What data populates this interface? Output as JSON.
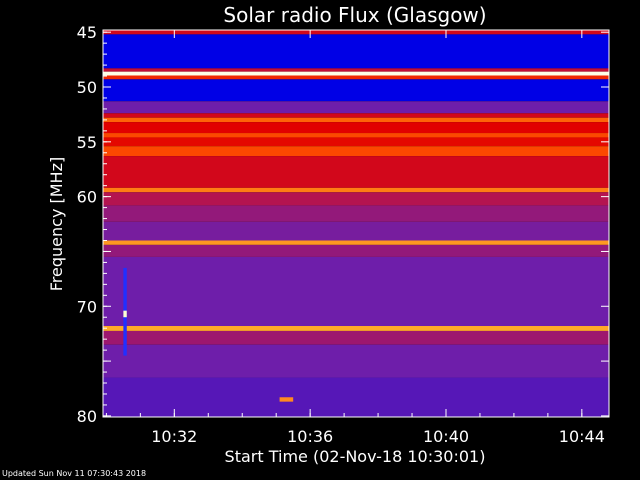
{
  "chart_data": {
    "type": "heatmap",
    "title": "Solar radio Flux (Glasgow)",
    "xlabel": "Start Time (02-Nov-18 10:30:01)",
    "ylabel": "Frequency [MHz]",
    "x_ticks": [
      "10:32",
      "10:36",
      "10:40",
      "10:44"
    ],
    "x_tick_minutes": [
      2,
      6,
      10,
      14
    ],
    "xlim_minutes": [
      -0.1,
      14.8
    ],
    "y_ticks": [
      45,
      50,
      55,
      60,
      65,
      70,
      75,
      80
    ],
    "y_tick_labels": [
      "45",
      "50",
      "55",
      "60",
      "",
      "70",
      "",
      "80"
    ],
    "ylim": [
      44.8,
      80.1
    ],
    "bands": [
      {
        "f0": 44.8,
        "f1": 45.2,
        "level": 0.55
      },
      {
        "f0": 45.2,
        "f1": 48.3,
        "level": 0.12
      },
      {
        "f0": 48.3,
        "f1": 48.6,
        "level": 0.5
      },
      {
        "f0": 48.6,
        "f1": 48.95,
        "level": 1.0
      },
      {
        "f0": 48.95,
        "f1": 49.3,
        "level": 0.7
      },
      {
        "f0": 49.3,
        "f1": 51.3,
        "level": 0.12
      },
      {
        "f0": 51.3,
        "f1": 52.4,
        "level": 0.3
      },
      {
        "f0": 52.4,
        "f1": 52.8,
        "level": 0.55
      },
      {
        "f0": 52.8,
        "f1": 53.2,
        "level": 0.82
      },
      {
        "f0": 53.2,
        "f1": 54.2,
        "level": 0.6
      },
      {
        "f0": 54.2,
        "f1": 54.6,
        "level": 0.78
      },
      {
        "f0": 54.6,
        "f1": 55.4,
        "level": 0.62
      },
      {
        "f0": 55.4,
        "f1": 56.3,
        "level": 0.78
      },
      {
        "f0": 56.3,
        "f1": 59.2,
        "level": 0.55
      },
      {
        "f0": 59.2,
        "f1": 59.6,
        "level": 0.85
      },
      {
        "f0": 59.6,
        "f1": 60.8,
        "level": 0.45
      },
      {
        "f0": 60.8,
        "f1": 62.3,
        "level": 0.38
      },
      {
        "f0": 62.3,
        "f1": 64.0,
        "level": 0.32
      },
      {
        "f0": 64.0,
        "f1": 64.4,
        "level": 0.88
      },
      {
        "f0": 64.4,
        "f1": 65.5,
        "level": 0.38
      },
      {
        "f0": 65.5,
        "f1": 71.8,
        "level": 0.3
      },
      {
        "f0": 71.8,
        "f1": 72.25,
        "level": 0.9
      },
      {
        "f0": 72.25,
        "f1": 73.5,
        "level": 0.4
      },
      {
        "f0": 73.5,
        "f1": 76.5,
        "level": 0.3
      },
      {
        "f0": 76.5,
        "f1": 80.1,
        "level": 0.26
      }
    ],
    "features": [
      {
        "t0": 0.5,
        "t1": 0.6,
        "f0": 66.5,
        "f1": 74.5,
        "kind": "blue-streak"
      },
      {
        "t0": 0.5,
        "t1": 0.6,
        "f0": 70.4,
        "f1": 71.0,
        "kind": "white-spot"
      },
      {
        "t0": 5.1,
        "t1": 5.5,
        "f0": 78.3,
        "f1": 78.7,
        "kind": "orange-spot"
      }
    ]
  },
  "footer": "Updated Sun Nov 11 07:30:43 2018"
}
